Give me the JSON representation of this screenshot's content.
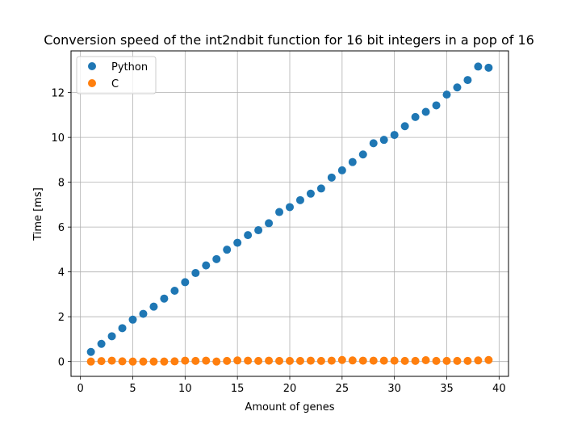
{
  "chart_data": {
    "type": "scatter",
    "title": "Conversion speed of the int2ndbit function for 16 bit integers in a pop of 16",
    "xlabel": "Amount of genes",
    "ylabel": "Time [ms]",
    "xlim": [
      -0.9,
      40.9
    ],
    "ylim": [
      -0.66,
      13.86
    ],
    "xticks": [
      0,
      5,
      10,
      15,
      20,
      25,
      30,
      35,
      40
    ],
    "yticks": [
      0,
      2,
      4,
      6,
      8,
      10,
      12
    ],
    "grid": true,
    "legend_position": "top-left",
    "series": [
      {
        "name": "Python",
        "color": "#1f77b4",
        "x": [
          1,
          2,
          3,
          4,
          5,
          6,
          7,
          8,
          9,
          10,
          11,
          12,
          13,
          14,
          15,
          16,
          17,
          18,
          19,
          20,
          21,
          22,
          23,
          24,
          25,
          26,
          27,
          28,
          29,
          30,
          31,
          32,
          33,
          34,
          35,
          36,
          37,
          38,
          39
        ],
        "y": [
          0.43,
          0.79,
          1.13,
          1.49,
          1.87,
          2.13,
          2.45,
          2.81,
          3.16,
          3.54,
          3.95,
          4.29,
          4.57,
          4.99,
          5.3,
          5.64,
          5.86,
          6.17,
          6.67,
          6.89,
          7.2,
          7.49,
          7.72,
          8.21,
          8.53,
          8.9,
          9.24,
          9.74,
          9.89,
          10.11,
          10.5,
          10.91,
          11.14,
          11.43,
          11.91,
          12.23,
          12.56,
          13.16,
          13.11
        ]
      },
      {
        "name": "C",
        "color": "#ff7f0e",
        "x": [
          1,
          2,
          3,
          4,
          5,
          6,
          7,
          8,
          9,
          10,
          11,
          12,
          13,
          14,
          15,
          16,
          17,
          18,
          19,
          20,
          21,
          22,
          23,
          24,
          25,
          26,
          27,
          28,
          29,
          30,
          31,
          32,
          33,
          34,
          35,
          36,
          37,
          38,
          39
        ],
        "y": [
          0.0,
          0.02,
          0.04,
          0.01,
          0.0,
          0.0,
          0.0,
          0.0,
          0.01,
          0.04,
          0.03,
          0.04,
          0.0,
          0.03,
          0.05,
          0.04,
          0.03,
          0.04,
          0.03,
          0.03,
          0.03,
          0.04,
          0.03,
          0.04,
          0.07,
          0.05,
          0.04,
          0.04,
          0.04,
          0.04,
          0.03,
          0.03,
          0.06,
          0.03,
          0.03,
          0.03,
          0.03,
          0.05,
          0.07
        ]
      }
    ]
  }
}
